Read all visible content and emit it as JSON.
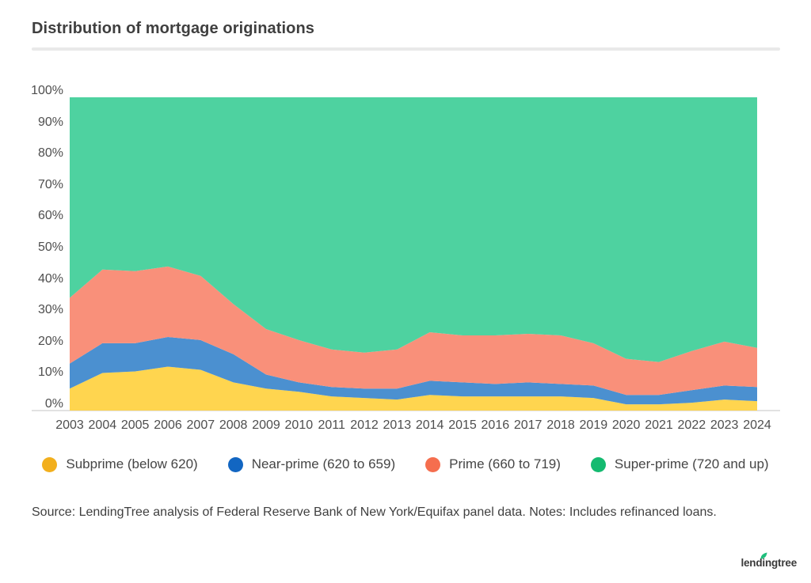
{
  "title": "Distribution of mortgage originations",
  "source_note": "Source: LendingTree analysis of Federal Reserve Bank of New York/Equifax panel data. Notes: Includes refinanced loans.",
  "logo": {
    "text": "lendingtree",
    "leaf_color": "#1fbe7c"
  },
  "colors": {
    "title_text": "#3f3f3f",
    "tick_text": "#4e4e4e",
    "divider": "#e9e9e9",
    "axis_line": "#e2e2e2"
  },
  "chart_data": {
    "type": "area",
    "stacked": true,
    "title": "Distribution of mortgage originations",
    "xlabel": "",
    "ylabel": "",
    "ylim": [
      0,
      100
    ],
    "grid": false,
    "legend_position": "bottom",
    "x": [
      "2003",
      "2004",
      "2005",
      "2006",
      "2007",
      "2008",
      "2009",
      "2010",
      "2011",
      "2012",
      "2013",
      "2014",
      "2015",
      "2016",
      "2017",
      "2018",
      "2019",
      "2020",
      "2021",
      "2022",
      "2023",
      "2024"
    ],
    "ytick_values": [
      0,
      10,
      20,
      30,
      40,
      50,
      60,
      70,
      80,
      90,
      100
    ],
    "ytick_labels": [
      "0%",
      "10%",
      "20%",
      "30%",
      "40%",
      "50%",
      "60%",
      "70%",
      "80%",
      "90%",
      "100%"
    ],
    "series": [
      {
        "name": "Subprime (below 620)",
        "area_color": "#ffd54f",
        "legend_color": "#f2af1d",
        "values": [
          7,
          12,
          12.5,
          14,
          13,
          9,
          7,
          6,
          4.5,
          4,
          3.5,
          5,
          4.5,
          4.5,
          4.5,
          4.5,
          4,
          2,
          2,
          2.5,
          3.5,
          3
        ]
      },
      {
        "name": "Near-prime (620 to 659)",
        "area_color": "#4b90d0",
        "legend_color": "#1266c2",
        "values": [
          8,
          9.5,
          9,
          9.5,
          9.5,
          9,
          4.5,
          3,
          3,
          3,
          3.5,
          4.5,
          4.5,
          4,
          4.5,
          4,
          4,
          3,
          3,
          4,
          4.5,
          4.5
        ]
      },
      {
        "name": "Prime (660 to 719)",
        "area_color": "#f9907a",
        "legend_color": "#f56e4e",
        "values": [
          21,
          23.5,
          23,
          22.5,
          20.5,
          16,
          14.5,
          13.5,
          12,
          11.5,
          12.5,
          15.5,
          15,
          15.5,
          15.5,
          15.5,
          13.5,
          11.5,
          10.5,
          12.5,
          14,
          12.5
        ]
      },
      {
        "name": "Super-prime (720 and up)",
        "area_color": "#4ed2a0",
        "legend_color": "#14ba70",
        "values": [
          64,
          55,
          55.5,
          54,
          57,
          66,
          74,
          77.5,
          80.5,
          81.5,
          80.5,
          75,
          76,
          76,
          75.5,
          76,
          78.5,
          83.5,
          84.5,
          81,
          78,
          80
        ]
      }
    ]
  }
}
